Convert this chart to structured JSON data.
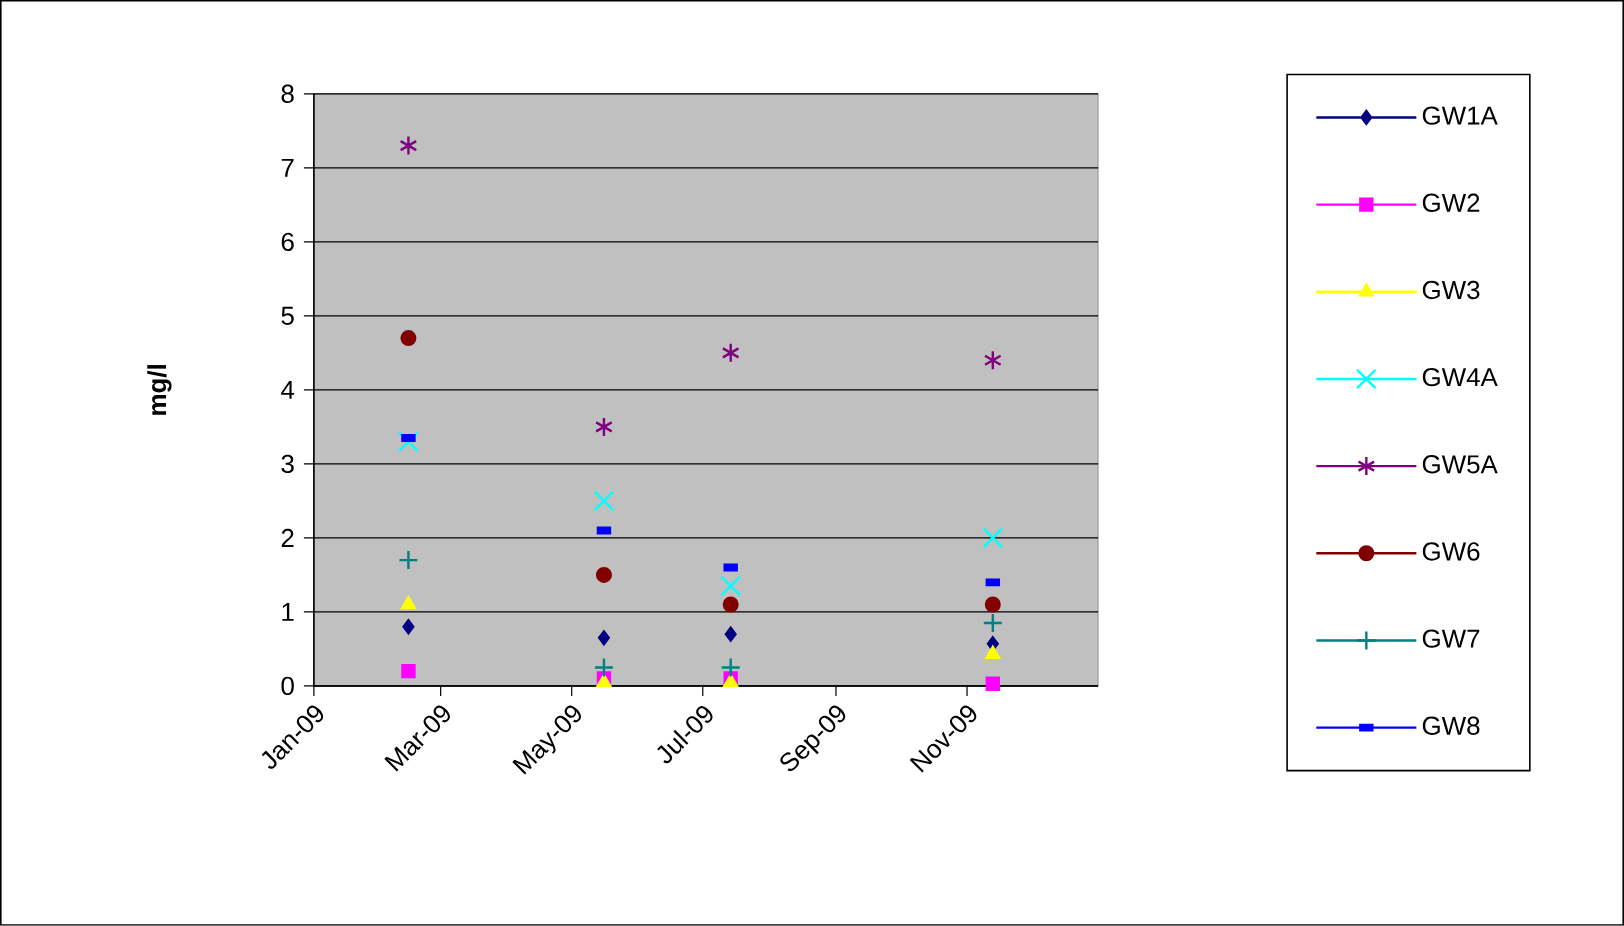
{
  "chart_data": {
    "type": "scatter",
    "ylabel": "mg/l",
    "x": [
      "2009-02-14",
      "2009-05-16",
      "2009-07-14",
      "2009-11-13"
    ],
    "xlim": [
      "2009-01-01",
      "2010-01-01"
    ],
    "xticks": [
      {
        "value": "2009-01-01",
        "label": "Jan-09"
      },
      {
        "value": "2009-03-01",
        "label": "Mar-09"
      },
      {
        "value": "2009-05-01",
        "label": "May-09"
      },
      {
        "value": "2009-07-01",
        "label": "Jul-09"
      },
      {
        "value": "2009-09-01",
        "label": "Sep-09"
      },
      {
        "value": "2009-11-01",
        "label": "Nov-09"
      }
    ],
    "ylim": [
      0,
      8
    ],
    "yticks": [
      0,
      1,
      2,
      3,
      4,
      5,
      6,
      7,
      8
    ],
    "grid": "y",
    "legend": "right",
    "series": [
      {
        "name": "GW1A",
        "color": "#000080",
        "marker": "diamond",
        "values": [
          0.8,
          0.65,
          0.7,
          0.57
        ]
      },
      {
        "name": "GW2",
        "color": "#ff00ff",
        "marker": "square",
        "values": [
          0.2,
          0.1,
          0.1,
          0.03
        ]
      },
      {
        "name": "GW3",
        "color": "#ffff00",
        "marker": "triangle",
        "values": [
          1.1,
          0.05,
          0.05,
          0.43
        ]
      },
      {
        "name": "GW4A",
        "color": "#00ffff",
        "marker": "x",
        "values": [
          3.3,
          2.5,
          1.35,
          2.0
        ]
      },
      {
        "name": "GW5A",
        "color": "#800080",
        "marker": "cross",
        "values": [
          7.3,
          3.5,
          4.5,
          4.4
        ]
      },
      {
        "name": "GW6",
        "color": "#800000",
        "marker": "circle",
        "values": [
          4.7,
          1.5,
          1.1,
          1.1
        ]
      },
      {
        "name": "GW7",
        "color": "#008080",
        "marker": "plus",
        "values": [
          1.7,
          0.25,
          0.25,
          0.85
        ]
      },
      {
        "name": "GW8",
        "color": "#0000ff",
        "values": [
          3.35,
          2.1,
          1.6,
          1.4
        ]
      }
    ]
  }
}
